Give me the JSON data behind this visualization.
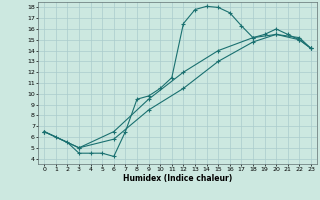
{
  "xlabel": "Humidex (Indice chaleur)",
  "bg_color": "#cce8e0",
  "grid_color": "#aacccc",
  "line_color": "#1a7070",
  "xlim": [
    -0.5,
    23.5
  ],
  "ylim": [
    3.5,
    18.5
  ],
  "xticks": [
    0,
    1,
    2,
    3,
    4,
    5,
    6,
    7,
    8,
    9,
    10,
    11,
    12,
    13,
    14,
    15,
    16,
    17,
    18,
    19,
    20,
    21,
    22,
    23
  ],
  "yticks": [
    4,
    5,
    6,
    7,
    8,
    9,
    10,
    11,
    12,
    13,
    14,
    15,
    16,
    17,
    18
  ],
  "line1_x": [
    0,
    1,
    2,
    3,
    4,
    5,
    6,
    7,
    8,
    9,
    10,
    11,
    12,
    13,
    14,
    15,
    16,
    17,
    18,
    19,
    20,
    21,
    22,
    23
  ],
  "line1_y": [
    6.5,
    6.0,
    5.5,
    4.5,
    4.5,
    4.5,
    4.2,
    6.5,
    9.5,
    9.8,
    10.5,
    11.5,
    16.5,
    17.8,
    18.1,
    18.0,
    17.5,
    16.3,
    15.2,
    15.5,
    16.0,
    15.5,
    15.0,
    14.2
  ],
  "line2_x": [
    0,
    3,
    6,
    9,
    12,
    15,
    18,
    20,
    22,
    23
  ],
  "line2_y": [
    6.5,
    5.0,
    6.5,
    9.5,
    12.0,
    14.0,
    15.2,
    15.5,
    15.2,
    14.2
  ],
  "line3_x": [
    0,
    3,
    6,
    9,
    12,
    15,
    18,
    20,
    22,
    23
  ],
  "line3_y": [
    6.5,
    5.0,
    5.8,
    8.5,
    10.5,
    13.0,
    14.8,
    15.5,
    15.0,
    14.2
  ]
}
